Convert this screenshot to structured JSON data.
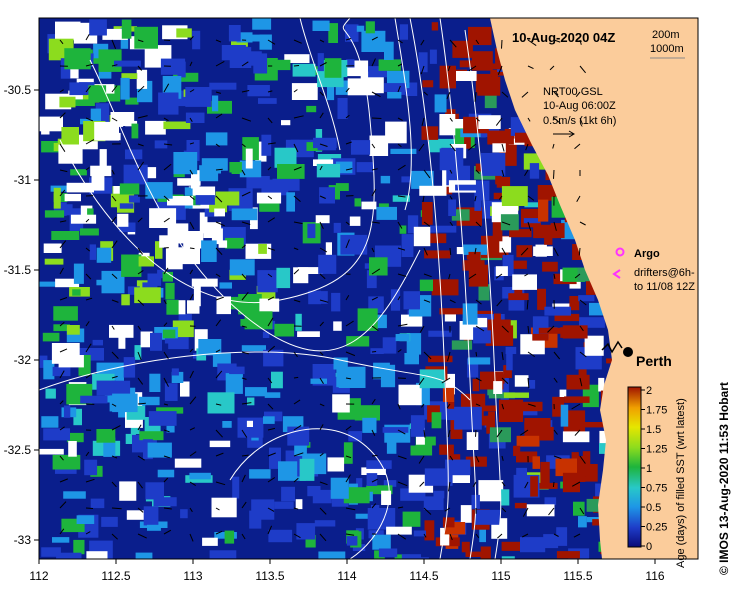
{
  "map": {
    "title": "10-Aug-2020 04Z",
    "depth_contours": [
      "200m",
      "1000m"
    ],
    "product": "NRT00 GSL",
    "product_time": "10-Aug 06:00Z",
    "vector_scale": "0.5m/s (1kt 6h)",
    "legend": {
      "argo_label": "Argo",
      "drifters_line1": "drifters@6h-",
      "drifters_line2": "to 11/08 12Z",
      "argo_color": "#ff33ff",
      "drifter_color": "#ff33ff"
    },
    "city": "Perth",
    "colorbar": {
      "title": "Age (days) of filled SST (wrt latest)",
      "ticks": [
        "2",
        "1.75",
        "1.5",
        "1.25",
        "1",
        "0.75",
        "0.5",
        "0.25",
        "0"
      ],
      "colors": [
        "#0a0a78",
        "#1e3cc8",
        "#1e96e6",
        "#28c8c8",
        "#1eb43c",
        "#8cdc1e",
        "#e6e600",
        "#f0a000",
        "#a01400"
      ]
    },
    "credit": "© IMOS 13-Aug-2020 11:53 Hobart",
    "x_ticks": [
      "112",
      "112.5",
      "113",
      "113.5",
      "114",
      "114.5",
      "115",
      "115.5",
      "116"
    ],
    "y_ticks": [
      "-30.5",
      "-31",
      "-31.5",
      "-32",
      "-32.5",
      "-33"
    ],
    "land_color": "#fbcc9b",
    "ocean_color": "#0a1e8c"
  }
}
